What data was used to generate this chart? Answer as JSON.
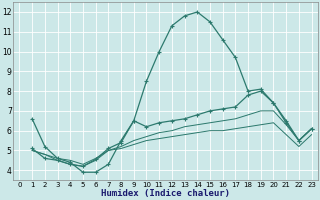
{
  "xlabel": "Humidex (Indice chaleur)",
  "bg_color": "#cce8e8",
  "grid_color": "#ffffff",
  "line_color": "#2d7a6e",
  "xlim": [
    -0.5,
    23.5
  ],
  "ylim": [
    3.5,
    12.5
  ],
  "xticks": [
    0,
    1,
    2,
    3,
    4,
    5,
    6,
    7,
    8,
    9,
    10,
    11,
    12,
    13,
    14,
    15,
    16,
    17,
    18,
    19,
    20,
    21,
    22,
    23
  ],
  "yticks": [
    4,
    5,
    6,
    7,
    8,
    9,
    10,
    11,
    12
  ],
  "curve1_x": [
    1,
    2,
    3,
    4,
    5,
    6,
    7,
    8,
    9,
    10,
    11,
    12,
    13,
    14,
    15,
    16,
    17,
    18,
    19,
    20,
    21,
    22,
    23
  ],
  "curve1_y": [
    6.6,
    5.2,
    4.6,
    4.4,
    3.9,
    3.9,
    4.3,
    5.5,
    6.5,
    8.5,
    10.0,
    11.3,
    11.8,
    12.0,
    11.5,
    10.6,
    9.7,
    8.0,
    8.1,
    7.4,
    6.4,
    5.5,
    6.1
  ],
  "curve2_x": [
    1,
    2,
    3,
    4,
    5,
    6,
    7,
    8,
    9,
    10,
    11,
    12,
    13,
    14,
    15,
    16,
    17,
    18,
    19,
    20,
    21,
    22,
    23
  ],
  "curve2_y": [
    5.1,
    4.6,
    4.5,
    4.3,
    4.2,
    4.55,
    5.1,
    5.4,
    6.5,
    6.2,
    6.4,
    6.5,
    6.6,
    6.8,
    7.0,
    7.1,
    7.2,
    7.8,
    8.0,
    7.4,
    6.5,
    5.5,
    6.1
  ],
  "curve3_x": [
    1,
    2,
    3,
    4,
    5,
    6,
    7,
    8,
    9,
    10,
    11,
    12,
    13,
    14,
    15,
    16,
    17,
    18,
    19,
    20,
    21,
    22,
    23
  ],
  "curve3_y": [
    5.0,
    4.8,
    4.6,
    4.5,
    4.3,
    4.6,
    5.0,
    5.2,
    5.5,
    5.7,
    5.9,
    6.0,
    6.2,
    6.3,
    6.4,
    6.5,
    6.6,
    6.8,
    7.0,
    7.0,
    6.3,
    5.5,
    6.1
  ],
  "curve4_x": [
    1,
    2,
    3,
    4,
    5,
    6,
    7,
    8,
    9,
    10,
    11,
    12,
    13,
    14,
    15,
    16,
    17,
    18,
    19,
    20,
    21,
    22,
    23
  ],
  "curve4_y": [
    5.0,
    4.8,
    4.5,
    4.3,
    4.2,
    4.5,
    5.0,
    5.1,
    5.3,
    5.5,
    5.6,
    5.7,
    5.8,
    5.9,
    6.0,
    6.0,
    6.1,
    6.2,
    6.3,
    6.4,
    5.8,
    5.2,
    5.8
  ]
}
